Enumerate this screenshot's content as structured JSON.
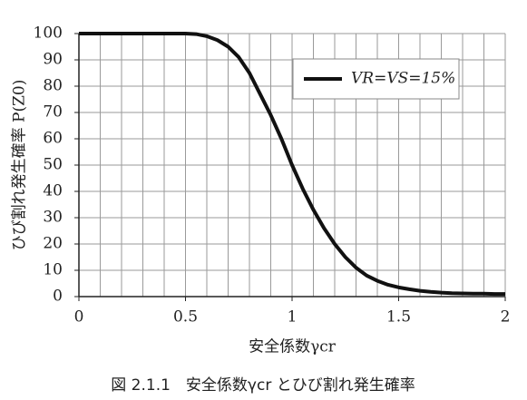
{
  "chart_data": {
    "type": "line",
    "caption": "図 2.1.1　安全係数γcr とひび割れ発生確率",
    "x_label": "安全係数γcr",
    "y_label": "ひび割れ発生確率 P(Z0)",
    "x": [
      0,
      0.1,
      0.2,
      0.3,
      0.4,
      0.5,
      0.55,
      0.6,
      0.65,
      0.7,
      0.75,
      0.8,
      0.85,
      0.9,
      0.95,
      1.0,
      1.05,
      1.1,
      1.15,
      1.2,
      1.25,
      1.3,
      1.35,
      1.4,
      1.45,
      1.5,
      1.55,
      1.6,
      1.65,
      1.7,
      1.75,
      1.8,
      1.85,
      1.9,
      1.95,
      2.0
    ],
    "series": [
      {
        "name": "VR=VS=15%",
        "color": "#111111",
        "values": [
          100,
          100,
          100,
          100,
          100,
          100,
          99.8,
          99,
          97.5,
          95,
          91,
          85,
          77,
          69,
          60,
          50,
          41,
          33,
          26,
          20,
          15,
          11,
          8,
          6,
          4.5,
          3.5,
          2.8,
          2.2,
          1.8,
          1.5,
          1.3,
          1.2,
          1.1,
          1.1,
          1,
          1
        ]
      }
    ],
    "xlim": [
      0,
      2
    ],
    "ylim": [
      0,
      100
    ],
    "xticks": [
      0,
      0.5,
      1,
      1.5,
      2
    ],
    "yticks": [
      0,
      10,
      20,
      30,
      40,
      50,
      60,
      70,
      80,
      90,
      100
    ],
    "xgrid": [
      0.1,
      0.2,
      0.3,
      0.4,
      0.5,
      0.6,
      0.7,
      0.8,
      0.9,
      1,
      1.1,
      1.2,
      1.3,
      1.4,
      1.5,
      1.6,
      1.7,
      1.8,
      1.9,
      2
    ],
    "grid": true,
    "legend": "upper right"
  }
}
